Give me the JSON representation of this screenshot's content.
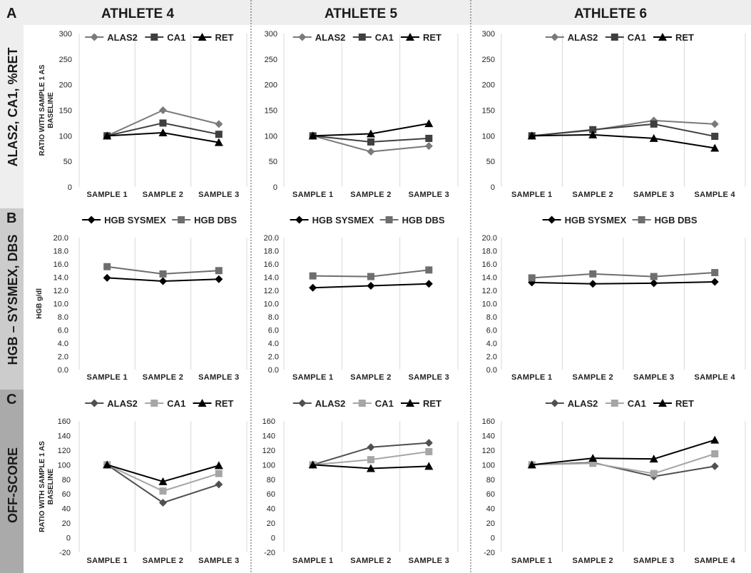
{
  "columns": [
    "ATHLETE 4",
    "ATHLETE 5",
    "ATHLETE 6"
  ],
  "rows": [
    {
      "letter": "A",
      "label": "ALAS2, CA1, %RET"
    },
    {
      "letter": "B",
      "label": "HGB – SYSMEX, DBS"
    },
    {
      "letter": "C",
      "label": "OFF-SCORE"
    }
  ],
  "colors": {
    "header_bg": "#eeeeee",
    "row_header_bg": [
      "#eeeeee",
      "#cccccc",
      "#aaaaaa"
    ],
    "grid": "#d9d9d9",
    "divider": "#555555"
  },
  "chart_data": [
    {
      "panel": "A",
      "column": "ATHLETE 4",
      "type": "line",
      "ylabel": [
        "RATIO WITH SAMPLE 1 AS",
        "BASELINE"
      ],
      "ylim": [
        0,
        300
      ],
      "yticks": [
        "0",
        "50",
        "100",
        "150",
        "200",
        "250",
        "300"
      ],
      "categories": [
        "SAMPLE 1",
        "SAMPLE 2",
        "SAMPLE 3"
      ],
      "series": [
        {
          "name": "ALAS2",
          "color": "#7a7a7a",
          "marker": "diamond",
          "values": [
            100,
            150,
            123
          ]
        },
        {
          "name": "CA1",
          "color": "#404040",
          "marker": "square",
          "values": [
            100,
            125,
            103
          ]
        },
        {
          "name": "RET",
          "color": "#000000",
          "marker": "triangle",
          "values": [
            100,
            106,
            87
          ]
        }
      ]
    },
    {
      "panel": "A",
      "column": "ATHLETE 5",
      "type": "line",
      "ylim": [
        0,
        300
      ],
      "yticks": [
        "0",
        "50",
        "100",
        "150",
        "200",
        "250",
        "300"
      ],
      "categories": [
        "SAMPLE 1",
        "SAMPLE 2",
        "SAMPLE 3"
      ],
      "series": [
        {
          "name": "ALAS2",
          "color": "#7a7a7a",
          "marker": "diamond",
          "values": [
            100,
            69,
            80
          ]
        },
        {
          "name": "CA1",
          "color": "#404040",
          "marker": "square",
          "values": [
            100,
            88,
            95
          ]
        },
        {
          "name": "RET",
          "color": "#000000",
          "marker": "triangle",
          "values": [
            100,
            104,
            124
          ]
        }
      ]
    },
    {
      "panel": "A",
      "column": "ATHLETE 6",
      "type": "line",
      "ylim": [
        0,
        300
      ],
      "yticks": [
        "0",
        "50",
        "100",
        "150",
        "200",
        "250",
        "300"
      ],
      "categories": [
        "SAMPLE 1",
        "SAMPLE 2",
        "SAMPLE 3",
        "SAMPLE 4"
      ],
      "series": [
        {
          "name": "ALAS2",
          "color": "#7a7a7a",
          "marker": "diamond",
          "values": [
            100,
            111,
            130,
            123
          ]
        },
        {
          "name": "CA1",
          "color": "#404040",
          "marker": "square",
          "values": [
            100,
            112,
            123,
            99
          ]
        },
        {
          "name": "RET",
          "color": "#000000",
          "marker": "triangle",
          "values": [
            100,
            102,
            95,
            76
          ]
        }
      ]
    },
    {
      "panel": "B",
      "column": "ATHLETE 4",
      "type": "line",
      "ylabel": [
        "HGB g/dl"
      ],
      "ylim": [
        0,
        20
      ],
      "yticks": [
        "0.0",
        "2.0",
        "4.0",
        "6.0",
        "8.0",
        "10.0",
        "12.0",
        "14.0",
        "16.0",
        "18.0",
        "20.0"
      ],
      "categories": [
        "SAMPLE 1",
        "SAMPLE 2",
        "SAMPLE 3"
      ],
      "series": [
        {
          "name": "HGB SYSMEX",
          "color": "#000000",
          "marker": "diamond",
          "values": [
            13.9,
            13.4,
            13.7
          ]
        },
        {
          "name": "HGB DBS",
          "color": "#6e6e6e",
          "marker": "square",
          "values": [
            15.6,
            14.5,
            15.0
          ]
        }
      ]
    },
    {
      "panel": "B",
      "column": "ATHLETE 5",
      "type": "line",
      "ylim": [
        0,
        20
      ],
      "yticks": [
        "0.0",
        "2.0",
        "4.0",
        "6.0",
        "8.0",
        "10.0",
        "12.0",
        "14.0",
        "16.0",
        "18.0",
        "20.0"
      ],
      "categories": [
        "SAMPLE 1",
        "SAMPLE 2",
        "SAMPLE 3"
      ],
      "series": [
        {
          "name": "HGB SYSMEX",
          "color": "#000000",
          "marker": "diamond",
          "values": [
            12.4,
            12.7,
            13.0
          ]
        },
        {
          "name": "HGB DBS",
          "color": "#6e6e6e",
          "marker": "square",
          "values": [
            14.2,
            14.1,
            15.1
          ]
        }
      ]
    },
    {
      "panel": "B",
      "column": "ATHLETE 6",
      "type": "line",
      "ylim": [
        0,
        20
      ],
      "yticks": [
        "0.0",
        "2.0",
        "4.0",
        "6.0",
        "8.0",
        "10.0",
        "12.0",
        "14.0",
        "16.0",
        "18.0",
        "20.0"
      ],
      "categories": [
        "SAMPLE 1",
        "SAMPLE 2",
        "SAMPLE 3",
        "SAMPLE 4"
      ],
      "series": [
        {
          "name": "HGB SYSMEX",
          "color": "#000000",
          "marker": "diamond",
          "values": [
            13.2,
            13.0,
            13.1,
            13.3
          ]
        },
        {
          "name": "HGB DBS",
          "color": "#6e6e6e",
          "marker": "square",
          "values": [
            13.9,
            14.5,
            14.1,
            14.7
          ]
        }
      ]
    },
    {
      "panel": "C",
      "column": "ATHLETE 4",
      "type": "line",
      "ylabel": [
        "RATIO WITH SAMPLE 1 AS",
        "BASELINE"
      ],
      "ylim": [
        -20,
        160
      ],
      "yticks": [
        "-20",
        "0",
        "20",
        "40",
        "60",
        "80",
        "100",
        "120",
        "140",
        "160"
      ],
      "categories": [
        "SAMPLE 1",
        "SAMPLE 2",
        "SAMPLE 3"
      ],
      "series": [
        {
          "name": "ALAS2",
          "color": "#505050",
          "marker": "diamond",
          "values": [
            100,
            48,
            73
          ]
        },
        {
          "name": "CA1",
          "color": "#a6a6a6",
          "marker": "square",
          "values": [
            100,
            64,
            88
          ]
        },
        {
          "name": "RET",
          "color": "#000000",
          "marker": "triangle",
          "values": [
            100,
            77,
            99
          ]
        }
      ]
    },
    {
      "panel": "C",
      "column": "ATHLETE 5",
      "type": "line",
      "ylim": [
        -20,
        160
      ],
      "yticks": [
        "-20",
        "0",
        "20",
        "40",
        "60",
        "80",
        "100",
        "120",
        "140",
        "160"
      ],
      "categories": [
        "SAMPLE 1",
        "SAMPLE 2",
        "SAMPLE 3"
      ],
      "series": [
        {
          "name": "ALAS2",
          "color": "#505050",
          "marker": "diamond",
          "values": [
            100,
            124,
            130
          ]
        },
        {
          "name": "CA1",
          "color": "#a6a6a6",
          "marker": "square",
          "values": [
            100,
            107,
            118
          ]
        },
        {
          "name": "RET",
          "color": "#000000",
          "marker": "triangle",
          "values": [
            100,
            95,
            98
          ]
        }
      ]
    },
    {
      "panel": "C",
      "column": "ATHLETE 6",
      "type": "line",
      "ylim": [
        -20,
        160
      ],
      "yticks": [
        "-20",
        "0",
        "20",
        "40",
        "60",
        "80",
        "100",
        "120",
        "140",
        "160"
      ],
      "categories": [
        "SAMPLE 1",
        "SAMPLE 2",
        "SAMPLE 3",
        "SAMPLE 4"
      ],
      "series": [
        {
          "name": "ALAS2",
          "color": "#505050",
          "marker": "diamond",
          "values": [
            100,
            103,
            84,
            98
          ]
        },
        {
          "name": "CA1",
          "color": "#a6a6a6",
          "marker": "square",
          "values": [
            100,
            102,
            88,
            115
          ]
        },
        {
          "name": "RET",
          "color": "#000000",
          "marker": "triangle",
          "values": [
            100,
            109,
            108,
            134
          ]
        }
      ]
    }
  ]
}
